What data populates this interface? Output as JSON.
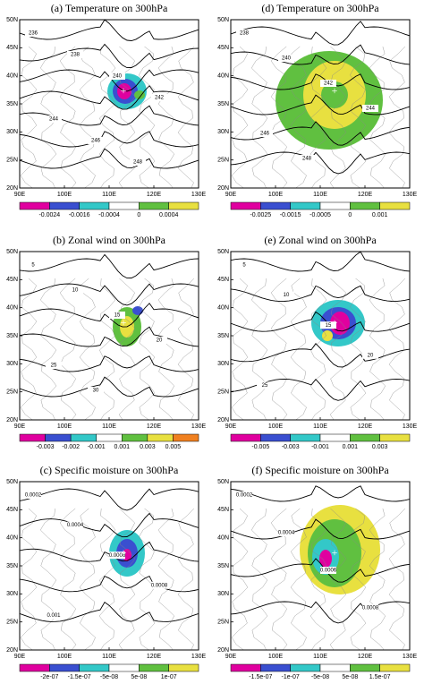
{
  "lat_ticks": [
    "50N",
    "45N",
    "40N",
    "35N",
    "30N",
    "25N",
    "20N"
  ],
  "lon_ticks": [
    "90E",
    "100E",
    "110E",
    "120E",
    "130E"
  ],
  "panels": [
    {
      "title": "(a) Temperature on 300hPa",
      "colorbar": {
        "labels": [
          "-0.0024",
          "-0.0016",
          "-0.0004",
          "0",
          "0.0004"
        ],
        "colors": [
          "#e0009f",
          "#3a4fd0",
          "#33c8c8",
          "#ffffff",
          "#60c040",
          "#e8e040"
        ]
      },
      "contour_labels": [
        "236",
        "238",
        "240",
        "242",
        "244",
        "246",
        "248"
      ]
    },
    {
      "title": "(b) Zonal wind on 300hPa",
      "colorbar": {
        "labels": [
          "-0.003",
          "-0.002",
          "-0.001",
          "0.001",
          "0.003",
          "0.005"
        ],
        "colors": [
          "#e0009f",
          "#3a4fd0",
          "#33c8c8",
          "#ffffff",
          "#60c040",
          "#e8e040",
          "#f08020"
        ]
      },
      "contour_labels": [
        "5",
        "10",
        "15",
        "20",
        "25",
        "30"
      ]
    },
    {
      "title": "(c) Specific moisture on 300hPa",
      "colorbar": {
        "labels": [
          "-2e-07",
          "-1.5e-07",
          "-5e-08",
          "5e-08",
          "1e-07"
        ],
        "colors": [
          "#e0009f",
          "#3a4fd0",
          "#33c8c8",
          "#ffffff",
          "#60c040",
          "#e8e040"
        ]
      },
      "contour_labels": [
        "0.0002",
        "0.0004",
        "0.0006",
        "0.0008",
        "0.001"
      ]
    },
    {
      "title": "(d) Temperature on 300hPa",
      "colorbar": {
        "labels": [
          "-0.0025",
          "-0.0015",
          "-0.0005",
          "0",
          "0.001"
        ],
        "colors": [
          "#e0009f",
          "#3a4fd0",
          "#33c8c8",
          "#ffffff",
          "#60c040",
          "#e8e040"
        ]
      },
      "contour_labels": [
        "238",
        "240",
        "242",
        "244",
        "246",
        "248"
      ]
    },
    {
      "title": "(e) Zonal wind on 300hPa",
      "colorbar": {
        "labels": [
          "-0.005",
          "-0.003",
          "-0.001",
          "0.001",
          "0.003"
        ],
        "colors": [
          "#e0009f",
          "#3a4fd0",
          "#33c8c8",
          "#ffffff",
          "#60c040",
          "#e8e040"
        ]
      },
      "contour_labels": [
        "5",
        "10",
        "15",
        "20",
        "25"
      ]
    },
    {
      "title": "(f) Specific moisture on 300hPa",
      "colorbar": {
        "labels": [
          "-1.5e-07",
          "-1e-07",
          "-5e-08",
          "5e-08",
          "1.5e-07"
        ],
        "colors": [
          "#e0009f",
          "#3a4fd0",
          "#33c8c8",
          "#ffffff",
          "#60c040",
          "#e8e040"
        ]
      },
      "contour_labels": [
        "0.0002",
        "0.0004",
        "0.0006",
        "0.0008"
      ]
    }
  ]
}
